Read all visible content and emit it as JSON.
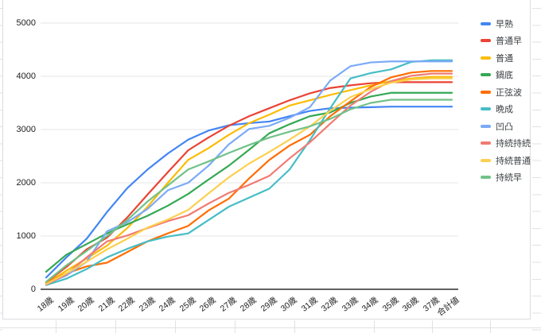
{
  "chart_data": {
    "type": "line",
    "title": "",
    "xlabel": "",
    "ylabel": "",
    "ylim": [
      0,
      5000
    ],
    "y_ticks": [
      0,
      1000,
      2000,
      3000,
      4000,
      5000
    ],
    "grid": "horizontal",
    "legend_position": "right",
    "categories": [
      "18歳",
      "19歳",
      "20歳",
      "21歳",
      "22歳",
      "23歳",
      "24歳",
      "25歳",
      "26歳",
      "27歳",
      "28歳",
      "29歳",
      "30歳",
      "31歳",
      "32歳",
      "33歳",
      "34歳",
      "35歳",
      "36歳",
      "37歳",
      "合計値"
    ],
    "series": [
      {
        "name": "早熟",
        "color": "#4285F4",
        "values": [
          220,
          600,
          950,
          1450,
          1900,
          2250,
          2550,
          2810,
          2980,
          3080,
          3120,
          3150,
          3250,
          3350,
          3400,
          3410,
          3420,
          3430,
          3430,
          3430,
          3430
        ]
      },
      {
        "name": "普通早",
        "color": "#EA4335",
        "values": [
          130,
          420,
          750,
          970,
          1350,
          1780,
          2200,
          2610,
          2850,
          3070,
          3250,
          3400,
          3550,
          3680,
          3780,
          3830,
          3870,
          3890,
          3890,
          3890,
          3890
        ]
      },
      {
        "name": "普通",
        "color": "#FBBC04",
        "values": [
          110,
          350,
          580,
          820,
          1150,
          1550,
          2000,
          2430,
          2650,
          2900,
          3120,
          3280,
          3450,
          3550,
          3650,
          3740,
          3830,
          3910,
          3960,
          3990,
          3990
        ]
      },
      {
        "name": "鍋底",
        "color": "#34A853",
        "values": [
          330,
          650,
          850,
          1050,
          1220,
          1380,
          1570,
          1790,
          2060,
          2320,
          2620,
          2930,
          3100,
          3250,
          3320,
          3500,
          3620,
          3690,
          3690,
          3690,
          3690
        ]
      },
      {
        "name": "正弦波",
        "color": "#FF6D01",
        "values": [
          120,
          300,
          430,
          500,
          700,
          900,
          1050,
          1190,
          1480,
          1700,
          2080,
          2430,
          2700,
          2900,
          3250,
          3530,
          3800,
          3980,
          4070,
          4100,
          4100
        ]
      },
      {
        "name": "晩成",
        "color": "#46BDC6",
        "values": [
          80,
          200,
          380,
          600,
          760,
          900,
          990,
          1050,
          1300,
          1550,
          1720,
          1890,
          2250,
          2800,
          3400,
          3960,
          4060,
          4130,
          4270,
          4300,
          4300
        ]
      },
      {
        "name": "凹凸",
        "color": "#7BAAF7",
        "values": [
          100,
          260,
          520,
          1090,
          1260,
          1510,
          1860,
          2000,
          2320,
          2720,
          3010,
          3070,
          3220,
          3420,
          3920,
          4190,
          4260,
          4280,
          4280,
          4280,
          4280
        ]
      },
      {
        "name": "持続持続",
        "color": "#F07B72",
        "values": [
          90,
          280,
          600,
          900,
          1010,
          1150,
          1280,
          1390,
          1610,
          1810,
          1960,
          2130,
          2460,
          2760,
          3110,
          3450,
          3710,
          3910,
          4010,
          4050,
          4050
        ]
      },
      {
        "name": "持続普通",
        "color": "#FCD04F",
        "values": [
          100,
          300,
          520,
          750,
          950,
          1160,
          1310,
          1490,
          1800,
          2100,
          2360,
          2580,
          2810,
          3060,
          3350,
          3610,
          3760,
          3880,
          3940,
          3960,
          3960
        ]
      },
      {
        "name": "持続早",
        "color": "#71C287",
        "values": [
          140,
          450,
          720,
          1000,
          1300,
          1650,
          1950,
          2250,
          2400,
          2560,
          2710,
          2850,
          2960,
          3060,
          3200,
          3380,
          3500,
          3560,
          3560,
          3560,
          3560
        ]
      }
    ],
    "style": {
      "gridline_color": "#e6e6e6",
      "baseline_color": "#616161",
      "tick_label_color": "#212121",
      "legend_text_color": "#3c4043",
      "background": "#ffffff",
      "sheet_gridline_color": "#e2e2e2"
    }
  }
}
